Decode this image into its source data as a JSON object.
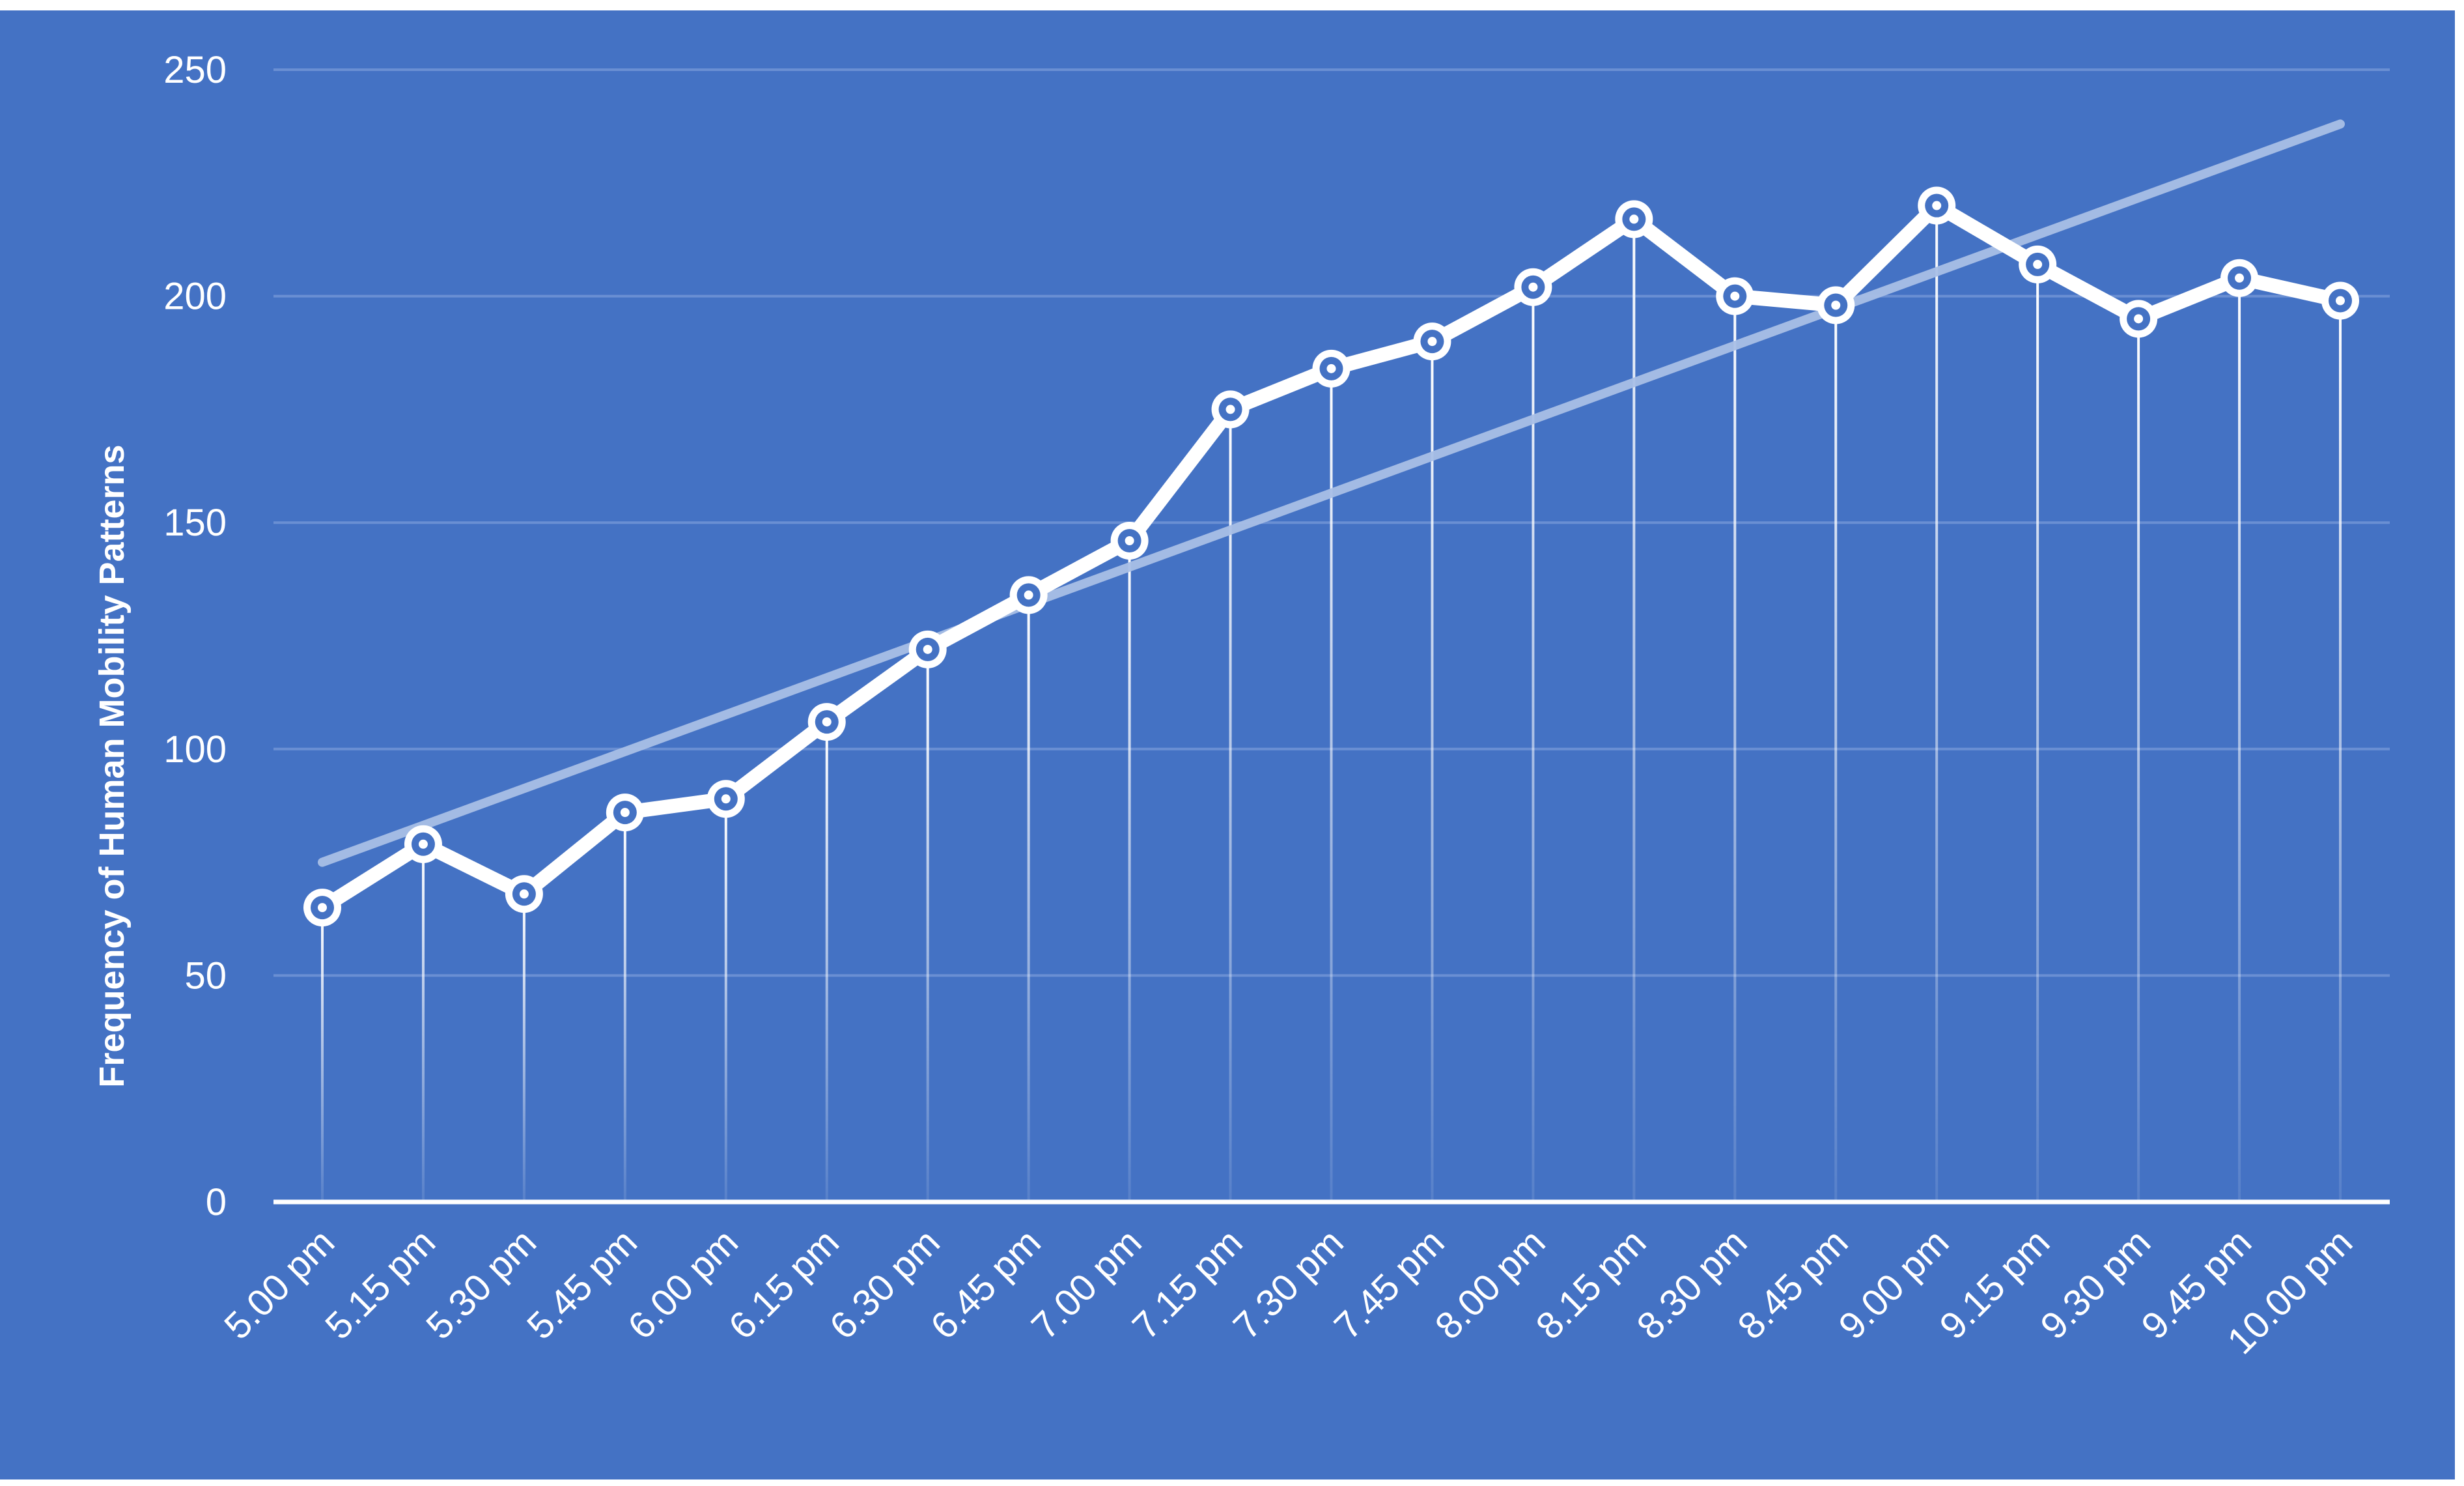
{
  "chart_data": {
    "type": "line",
    "title": "",
    "xlabel": "",
    "ylabel": "Frequency of Human Mobility Patterns",
    "ylim": [
      0,
      250
    ],
    "yticks": [
      0,
      50,
      100,
      150,
      200,
      250
    ],
    "grid": true,
    "categories": [
      "5.00 pm",
      "5.15 pm",
      "5.30 pm",
      "5.45 pm",
      "6.00 pm",
      "6.15 pm",
      "6.30 pm",
      "6.45 pm",
      "7.00 pm",
      "7.15 pm",
      "7.30 pm",
      "7.45 pm",
      "8.00 pm",
      "8.15 pm",
      "8.30 pm",
      "8.45 pm",
      "9.00 pm",
      "9.15 pm",
      "9.30 pm",
      "9.45 pm",
      "10.00 pm"
    ],
    "series": [
      {
        "values": [
          65,
          79,
          68,
          86,
          89,
          106,
          122,
          134,
          146,
          175,
          184,
          190,
          202,
          217,
          200,
          198,
          220,
          207,
          195,
          204,
          199
        ]
      }
    ],
    "trendline": {
      "type": "linear",
      "start": 75,
      "end": 238
    }
  },
  "colors": {
    "background": "#4472c4",
    "line": "#ffffff",
    "trend": "#a9bfe6",
    "grid": "#6a8fd3"
  }
}
